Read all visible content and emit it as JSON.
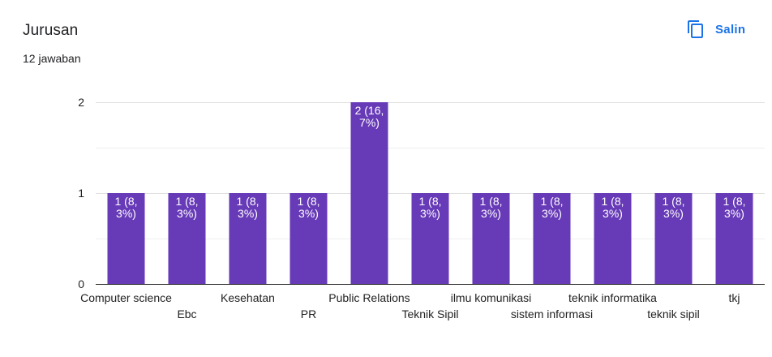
{
  "header": {
    "title": "Jurusan",
    "response_count": "12 jawaban",
    "copy_label": "Salin",
    "copy_icon": "copy-icon"
  },
  "colors": {
    "bar": "#673ab7",
    "accent": "#1a73e8",
    "grid": "#e0e0e0",
    "axis": "#333333",
    "text": "#222222"
  },
  "chart_data": {
    "type": "bar",
    "title": "",
    "xlabel": "",
    "ylabel": "",
    "ylim": [
      0,
      2
    ],
    "yticks": [
      "0",
      "1",
      "2"
    ],
    "grid": true,
    "categories": [
      "Computer science",
      "Ebc",
      "Kesehatan",
      "PR",
      "Public Relations",
      "Teknik Sipil",
      "ilmu komunikasi",
      "sistem informasi",
      "teknik informatika",
      "teknik sipil",
      "tkj"
    ],
    "values": [
      1,
      1,
      1,
      1,
      2,
      1,
      1,
      1,
      1,
      1,
      1
    ],
    "data_labels": [
      [
        "1 (8,",
        "3%)"
      ],
      [
        "1 (8,",
        "3%)"
      ],
      [
        "1 (8,",
        "3%)"
      ],
      [
        "1 (8,",
        "3%)"
      ],
      [
        "2 (16,",
        "7%)"
      ],
      [
        "1 (8,",
        "3%)"
      ],
      [
        "1 (8,",
        "3%)"
      ],
      [
        "1 (8,",
        "3%)"
      ],
      [
        "1 (8,",
        "3%)"
      ],
      [
        "1 (8,",
        "3%)"
      ],
      [
        "1 (8,",
        "3%)"
      ]
    ]
  }
}
